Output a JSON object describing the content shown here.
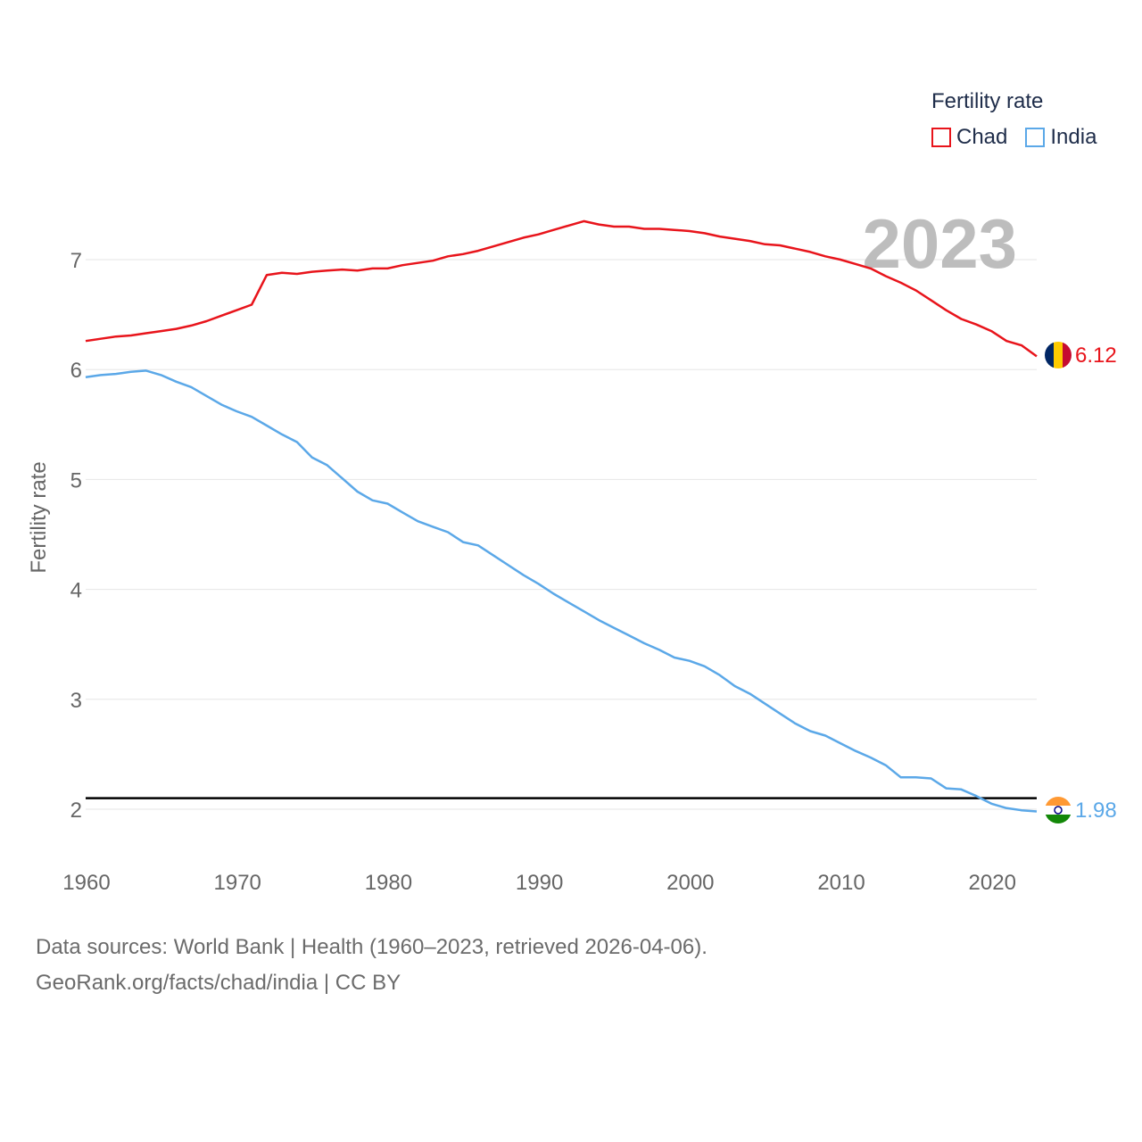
{
  "legend": {
    "title": "Fertility rate",
    "items": [
      {
        "label": "Chad",
        "color": "#e8141b"
      },
      {
        "label": "India",
        "color": "#5ba8e8"
      }
    ]
  },
  "sources": {
    "line1": "Data sources: World Bank | Health (1960–2023, retrieved 2026-04-06).",
    "line2": "GeoRank.org/facts/chad/india | CC BY"
  },
  "chart_data": {
    "type": "line",
    "title": "Fertility rate",
    "year_label": "2023",
    "xlabel": "",
    "ylabel": "Fertility rate",
    "xlim": [
      1960,
      2023
    ],
    "ylim": [
      1.5,
      7.8
    ],
    "x_ticks": [
      1960,
      1970,
      1980,
      1990,
      2000,
      2010,
      2020
    ],
    "y_ticks": [
      2,
      3,
      4,
      5,
      6,
      7
    ],
    "reference_line": 2.1,
    "grid": true,
    "legend_position": "top-right",
    "x": [
      1960,
      1961,
      1962,
      1963,
      1964,
      1965,
      1966,
      1967,
      1968,
      1969,
      1970,
      1971,
      1972,
      1973,
      1974,
      1975,
      1976,
      1977,
      1978,
      1979,
      1980,
      1981,
      1982,
      1983,
      1984,
      1985,
      1986,
      1987,
      1988,
      1989,
      1990,
      1991,
      1992,
      1993,
      1994,
      1995,
      1996,
      1997,
      1998,
      1999,
      2000,
      2001,
      2002,
      2003,
      2004,
      2005,
      2006,
      2007,
      2008,
      2009,
      2010,
      2011,
      2012,
      2013,
      2014,
      2015,
      2016,
      2017,
      2018,
      2019,
      2020,
      2021,
      2022,
      2023
    ],
    "series": [
      {
        "name": "Chad",
        "color": "#e8141b",
        "end_label": "6.12",
        "flag": "chad-flag",
        "values": [
          6.26,
          6.28,
          6.3,
          6.31,
          6.33,
          6.35,
          6.37,
          6.4,
          6.44,
          6.49,
          6.54,
          6.59,
          6.86,
          6.88,
          6.87,
          6.89,
          6.9,
          6.91,
          6.9,
          6.92,
          6.92,
          6.95,
          6.97,
          6.99,
          7.03,
          7.05,
          7.08,
          7.12,
          7.16,
          7.2,
          7.23,
          7.27,
          7.31,
          7.35,
          7.32,
          7.3,
          7.3,
          7.28,
          7.28,
          7.27,
          7.26,
          7.24,
          7.21,
          7.19,
          7.17,
          7.14,
          7.13,
          7.1,
          7.07,
          7.03,
          7.0,
          6.96,
          6.92,
          6.85,
          6.79,
          6.72,
          6.63,
          6.54,
          6.46,
          6.41,
          6.35,
          6.26,
          6.22,
          6.12
        ]
      },
      {
        "name": "India",
        "color": "#5ba8e8",
        "end_label": "1.98",
        "flag": "india-flag",
        "values": [
          5.93,
          5.95,
          5.96,
          5.98,
          5.99,
          5.95,
          5.89,
          5.84,
          5.76,
          5.68,
          5.62,
          5.57,
          5.49,
          5.41,
          5.34,
          5.2,
          5.13,
          5.01,
          4.89,
          4.81,
          4.78,
          4.7,
          4.62,
          4.57,
          4.52,
          4.43,
          4.4,
          4.31,
          4.22,
          4.13,
          4.05,
          3.96,
          3.88,
          3.8,
          3.72,
          3.65,
          3.58,
          3.51,
          3.45,
          3.38,
          3.35,
          3.3,
          3.22,
          3.12,
          3.05,
          2.96,
          2.87,
          2.78,
          2.71,
          2.67,
          2.6,
          2.53,
          2.47,
          2.4,
          2.29,
          2.29,
          2.28,
          2.19,
          2.18,
          2.12,
          2.05,
          2.01,
          1.99,
          1.98
        ]
      }
    ]
  }
}
